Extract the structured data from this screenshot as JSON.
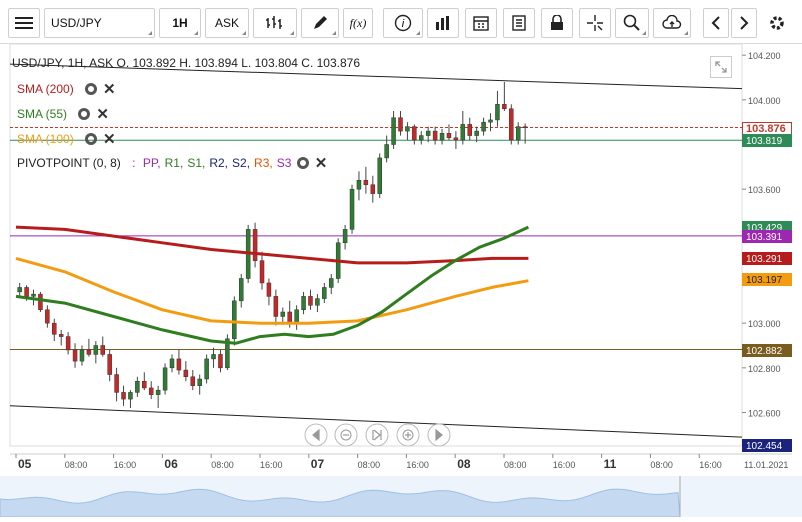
{
  "toolbar": {
    "symbol": "USD/JPY",
    "timeframe": "1H",
    "price_type": "ASK",
    "icons": [
      "menu-icon",
      "bar-style-icon",
      "draw-icon",
      "function-icon",
      "info-icon",
      "volume-icon",
      "calendar-icon",
      "document-icon",
      "lock-icon",
      "crosshair-icon",
      "zoom-icon",
      "upload-icon",
      "arrow-left-icon",
      "arrow-right-icon",
      "gear-icon"
    ],
    "function_glyph": "f(x)",
    "info_glyph": "i"
  },
  "header": {
    "ohlc": "USD/JPY, 1H, ASK   O. 103.892 H. 103.894 L. 103.804 C. 103.876"
  },
  "indicators": [
    {
      "label": "SMA (200)",
      "color": "#b71c1c"
    },
    {
      "label": "SMA (55)",
      "color": "#2e7d1f"
    },
    {
      "label": "SMA (100)",
      "color": "#f39c12"
    }
  ],
  "pivot": {
    "label": "PIVOTPOINT (0, 8)",
    "colon": ":",
    "levels": [
      {
        "name": "PP,",
        "color": "#9c27b0"
      },
      {
        "name": "R1,",
        "color": "#2e7d1f"
      },
      {
        "name": "S1,",
        "color": "#2e7d1f"
      },
      {
        "name": "R2,",
        "color": "#1a237e"
      },
      {
        "name": "S2,",
        "color": "#1a237e"
      },
      {
        "name": "R3,",
        "color": "#e65100"
      },
      {
        "name": "S3",
        "color": "#9c27b0"
      }
    ]
  },
  "price_tags": [
    {
      "value": "103.876",
      "bg": "#ffffff",
      "fg": "#c0392b",
      "border": "#c0392b",
      "y": 103.876
    },
    {
      "value": "103.819",
      "bg": "#2e8b57",
      "fg": "#ffffff",
      "border": "#2e8b57",
      "y": 103.819
    },
    {
      "value": "103.429",
      "bg": "#2e8b57",
      "fg": "#ffffff",
      "border": "#2e8b57",
      "y": 103.429
    },
    {
      "value": "103.391",
      "bg": "#9c27b0",
      "fg": "#ffffff",
      "border": "#9c27b0",
      "y": 103.391
    },
    {
      "value": "103.291",
      "bg": "#b71c1c",
      "fg": "#ffffff",
      "border": "#b71c1c",
      "y": 103.291
    },
    {
      "value": "103.197",
      "bg": "#f39c12",
      "fg": "#222222",
      "border": "#f39c12",
      "y": 103.197
    },
    {
      "value": "102.882",
      "bg": "#7a5c1e",
      "fg": "#ffffff",
      "border": "#7a5c1e",
      "y": 102.882
    },
    {
      "value": "102.454",
      "bg": "#1a237e",
      "fg": "#ffffff",
      "border": "#1a237e",
      "y": 102.454
    }
  ],
  "chart_data": {
    "type": "candlestick",
    "y_ticks": [
      "104.200",
      "104.000",
      "103.600",
      "103.000",
      "102.800",
      "102.600"
    ],
    "y_tick_values": [
      104.2,
      104.0,
      103.6,
      103.0,
      102.8,
      102.6
    ],
    "ylim": [
      102.45,
      104.25
    ],
    "x_ticks": [
      {
        "label": "05",
        "bold": true,
        "hour": 0
      },
      {
        "label": "08:00",
        "bold": false,
        "hour": 8
      },
      {
        "label": "16:00",
        "bold": false,
        "hour": 16
      },
      {
        "label": "06",
        "bold": true,
        "hour": 24
      },
      {
        "label": "08:00",
        "bold": false,
        "hour": 32
      },
      {
        "label": "16:00",
        "bold": false,
        "hour": 40
      },
      {
        "label": "07",
        "bold": true,
        "hour": 48
      },
      {
        "label": "08:00",
        "bold": false,
        "hour": 56
      },
      {
        "label": "16:00",
        "bold": false,
        "hour": 64
      },
      {
        "label": "08",
        "bold": true,
        "hour": 72
      },
      {
        "label": "08:00",
        "bold": false,
        "hour": 80
      },
      {
        "label": "16:00",
        "bold": false,
        "hour": 88
      },
      {
        "label": "11",
        "bold": true,
        "hour": 96
      },
      {
        "label": "08:00",
        "bold": false,
        "hour": 104
      },
      {
        "label": "16:00",
        "bold": false,
        "hour": 112
      },
      {
        "label": "11.01.2021",
        "bold": false,
        "hour": 117
      }
    ],
    "x_range_hours": [
      0,
      120
    ],
    "candles": [
      [
        103.14,
        103.18,
        103.12,
        103.16
      ],
      [
        103.16,
        103.17,
        103.1,
        103.12
      ],
      [
        103.12,
        103.15,
        103.08,
        103.13
      ],
      [
        103.13,
        103.14,
        103.05,
        103.06
      ],
      [
        103.06,
        103.08,
        102.98,
        103.0
      ],
      [
        103.0,
        103.02,
        102.92,
        102.95
      ],
      [
        102.95,
        102.97,
        102.9,
        102.94
      ],
      [
        102.94,
        102.96,
        102.86,
        102.88
      ],
      [
        102.88,
        102.91,
        102.8,
        102.83
      ],
      [
        102.83,
        102.9,
        102.81,
        102.88
      ],
      [
        102.88,
        102.93,
        102.85,
        102.86
      ],
      [
        102.86,
        102.92,
        102.82,
        102.9
      ],
      [
        102.9,
        102.94,
        102.85,
        102.86
      ],
      [
        102.86,
        102.88,
        102.74,
        102.77
      ],
      [
        102.77,
        102.8,
        102.65,
        102.69
      ],
      [
        102.69,
        102.72,
        102.63,
        102.66
      ],
      [
        102.66,
        102.7,
        102.62,
        102.69
      ],
      [
        102.69,
        102.76,
        102.67,
        102.74
      ],
      [
        102.74,
        102.78,
        102.7,
        102.71
      ],
      [
        102.71,
        102.74,
        102.66,
        102.68
      ],
      [
        102.68,
        102.72,
        102.62,
        102.7
      ],
      [
        102.7,
        102.82,
        102.68,
        102.8
      ],
      [
        102.8,
        102.86,
        102.78,
        102.84
      ],
      [
        102.84,
        102.88,
        102.77,
        102.79
      ],
      [
        102.79,
        102.83,
        102.74,
        102.76
      ],
      [
        102.76,
        102.79,
        102.7,
        102.72
      ],
      [
        102.72,
        102.77,
        102.68,
        102.75
      ],
      [
        102.75,
        102.86,
        102.73,
        102.84
      ],
      [
        102.84,
        102.89,
        102.8,
        102.86
      ],
      [
        102.86,
        102.88,
        102.78,
        102.8
      ],
      [
        102.8,
        102.95,
        102.79,
        102.93
      ],
      [
        102.93,
        103.12,
        102.9,
        103.1
      ],
      [
        103.1,
        103.22,
        103.07,
        103.2
      ],
      [
        103.2,
        103.44,
        103.18,
        103.42
      ],
      [
        103.42,
        103.45,
        103.25,
        103.28
      ],
      [
        103.28,
        103.32,
        103.15,
        103.18
      ],
      [
        103.18,
        103.2,
        103.08,
        103.12
      ],
      [
        103.12,
        103.15,
        102.99,
        103.03
      ],
      [
        103.03,
        103.07,
        103.0,
        103.05
      ],
      [
        103.05,
        103.1,
        102.98,
        103.0
      ],
      [
        103.0,
        103.08,
        102.97,
        103.06
      ],
      [
        103.06,
        103.14,
        103.04,
        103.12
      ],
      [
        103.12,
        103.15,
        103.06,
        103.08
      ],
      [
        103.08,
        103.13,
        103.05,
        103.11
      ],
      [
        103.11,
        103.18,
        103.09,
        103.16
      ],
      [
        103.16,
        103.22,
        103.13,
        103.2
      ],
      [
        103.2,
        103.38,
        103.18,
        103.36
      ],
      [
        103.36,
        103.44,
        103.33,
        103.42
      ],
      [
        103.42,
        103.62,
        103.4,
        103.6
      ],
      [
        103.6,
        103.68,
        103.55,
        103.64
      ],
      [
        103.64,
        103.7,
        103.58,
        103.62
      ],
      [
        103.62,
        103.66,
        103.54,
        103.58
      ],
      [
        103.58,
        103.76,
        103.56,
        103.74
      ],
      [
        103.74,
        103.84,
        103.72,
        103.8
      ],
      [
        103.8,
        103.95,
        103.78,
        103.92
      ],
      [
        103.92,
        103.95,
        103.84,
        103.86
      ],
      [
        103.86,
        103.9,
        103.82,
        103.88
      ],
      [
        103.88,
        103.89,
        103.8,
        103.82
      ],
      [
        103.82,
        103.86,
        103.8,
        103.84
      ],
      [
        103.84,
        103.88,
        103.81,
        103.86
      ],
      [
        103.86,
        103.88,
        103.8,
        103.82
      ],
      [
        103.82,
        103.87,
        103.8,
        103.85
      ],
      [
        103.85,
        103.89,
        103.82,
        103.83
      ],
      [
        103.83,
        103.86,
        103.78,
        103.82
      ],
      [
        103.82,
        103.95,
        103.8,
        103.89
      ],
      [
        103.89,
        103.92,
        103.82,
        103.84
      ],
      [
        103.84,
        103.88,
        103.81,
        103.86
      ],
      [
        103.86,
        103.92,
        103.84,
        103.9
      ],
      [
        103.9,
        103.94,
        103.86,
        103.91
      ],
      [
        103.91,
        104.04,
        103.88,
        103.98
      ],
      [
        103.98,
        104.08,
        103.95,
        103.96
      ],
      [
        103.96,
        103.98,
        103.8,
        103.82
      ],
      [
        103.82,
        103.9,
        103.8,
        103.88
      ],
      [
        103.88,
        103.894,
        103.804,
        103.876
      ]
    ],
    "sma200": [
      [
        0,
        103.43
      ],
      [
        8,
        103.42
      ],
      [
        16,
        103.39
      ],
      [
        24,
        103.36
      ],
      [
        32,
        103.33
      ],
      [
        40,
        103.31
      ],
      [
        48,
        103.29
      ],
      [
        56,
        103.27
      ],
      [
        64,
        103.27
      ],
      [
        72,
        103.28
      ],
      [
        78,
        103.29
      ],
      [
        84,
        103.29
      ]
    ],
    "sma100": [
      [
        0,
        103.29
      ],
      [
        8,
        103.23
      ],
      [
        16,
        103.14
      ],
      [
        24,
        103.06
      ],
      [
        32,
        103.01
      ],
      [
        40,
        103.0
      ],
      [
        48,
        103.0
      ],
      [
        56,
        103.01
      ],
      [
        64,
        103.06
      ],
      [
        72,
        103.12
      ],
      [
        78,
        103.16
      ],
      [
        84,
        103.19
      ]
    ],
    "sma55": [
      [
        0,
        103.12
      ],
      [
        8,
        103.09
      ],
      [
        16,
        103.03
      ],
      [
        24,
        102.97
      ],
      [
        32,
        102.92
      ],
      [
        36,
        102.91
      ],
      [
        40,
        102.94
      ],
      [
        44,
        102.95
      ],
      [
        48,
        102.94
      ],
      [
        52,
        102.95
      ],
      [
        56,
        102.99
      ],
      [
        60,
        103.05
      ],
      [
        64,
        103.13
      ],
      [
        68,
        103.21
      ],
      [
        72,
        103.28
      ],
      [
        76,
        103.34
      ],
      [
        80,
        103.38
      ],
      [
        84,
        103.43
      ]
    ],
    "pivot_lines": [
      {
        "y": 103.819,
        "color": "#2e8b57"
      },
      {
        "y": 103.876,
        "color": "#c0392b",
        "dashed": true
      },
      {
        "y": 103.391,
        "color": "#9c27b0"
      },
      {
        "y": 102.882,
        "color": "#7a5c1e"
      }
    ],
    "trendlines": [
      {
        "from": [
          0,
          104.16
        ],
        "to": [
          118,
          104.05
        ]
      },
      {
        "from": [
          0,
          102.63
        ],
        "to": [
          118,
          102.49
        ]
      }
    ]
  },
  "navigator": {
    "nav_icons": [
      "scroll-left-icon",
      "zoom-out-icon",
      "reset-icon",
      "zoom-in-icon",
      "scroll-right-icon"
    ]
  }
}
